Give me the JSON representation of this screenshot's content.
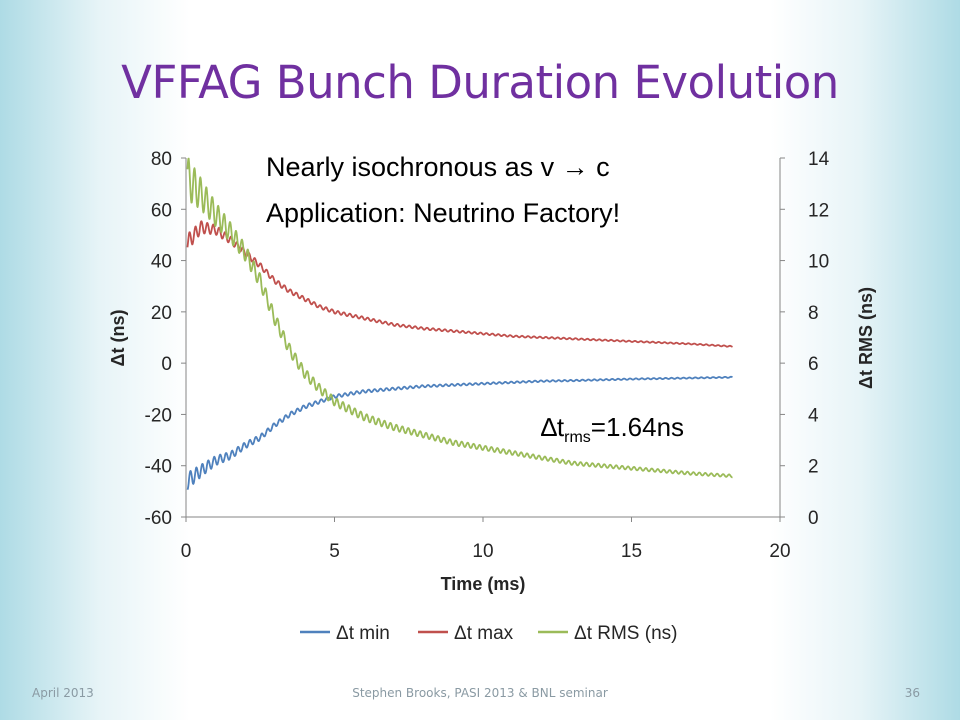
{
  "slide": {
    "title": "VFFAG Bunch Duration Evolution",
    "note_line1": "Nearly isochronous as v → c",
    "note_line2": "Application: Neutrino Factory!",
    "rms_note_prefix": "∆t",
    "rms_note_sub": "rms",
    "rms_note_suffix": "=1.64ns",
    "footer_date": "April 2013",
    "footer_center": "Stephen Brooks, PASI 2013 & BNL seminar",
    "page_number": "36",
    "title_color": "#7030a0"
  },
  "chart_data": {
    "type": "line",
    "title": "",
    "xlabel": "Time (ms)",
    "ylabel": "Δt (ns)",
    "y2label": "Δt RMS (ns)",
    "xlim": [
      0,
      20
    ],
    "ylim": [
      -60,
      80
    ],
    "y2lim": [
      0,
      14
    ],
    "xticks": [
      0,
      5,
      10,
      15,
      20
    ],
    "yticks": [
      -60,
      -40,
      -20,
      0,
      20,
      40,
      60,
      80
    ],
    "y2ticks": [
      0,
      2,
      4,
      6,
      8,
      10,
      12,
      14
    ],
    "grid": false,
    "legend_position": "bottom",
    "series": [
      {
        "name": "Δt min",
        "axis": "left",
        "color": "#4f81bd",
        "x": [
          0.05,
          0.5,
          1,
          1.5,
          2,
          2.5,
          3,
          3.5,
          4,
          4.5,
          5,
          6,
          7,
          8,
          9,
          10,
          11,
          12,
          13,
          14,
          15,
          16,
          17,
          18.4
        ],
        "y": [
          -46,
          -42,
          -38,
          -36,
          -32,
          -29,
          -24,
          -20,
          -17,
          -15,
          -13,
          -11,
          -10,
          -9,
          -8.5,
          -8,
          -7.5,
          -7,
          -6.8,
          -6.5,
          -6.2,
          -6,
          -5.8,
          -5.5
        ]
      },
      {
        "name": "Δt max",
        "axis": "left",
        "color": "#c0504d",
        "x": [
          0.05,
          0.5,
          1,
          1.5,
          2,
          2.5,
          3,
          3.5,
          4,
          4.5,
          5,
          6,
          7,
          8,
          9,
          10,
          11,
          12,
          13,
          14,
          15,
          16,
          17,
          18.4
        ],
        "y": [
          47,
          53,
          52,
          48,
          43,
          38,
          32,
          28,
          25,
          22,
          20,
          17.5,
          15,
          13.5,
          12.5,
          11.5,
          10.5,
          10,
          9.5,
          9,
          8.5,
          8,
          7.5,
          6.5
        ]
      },
      {
        "name": "Δt RMS (ns)",
        "axis": "right",
        "color": "#9bbb59",
        "x": [
          0.05,
          0.5,
          1,
          1.5,
          2,
          2.5,
          3,
          3.5,
          4,
          4.5,
          5,
          6,
          7,
          8,
          9,
          10,
          11,
          12,
          13,
          14,
          15,
          16,
          17,
          18.4
        ],
        "y": [
          13.2,
          12.6,
          11.8,
          11.1,
          10.3,
          9.2,
          7.7,
          6.5,
          5.6,
          5.0,
          4.5,
          3.9,
          3.5,
          3.2,
          2.9,
          2.7,
          2.5,
          2.3,
          2.1,
          2.0,
          1.9,
          1.8,
          1.7,
          1.6
        ]
      }
    ]
  }
}
